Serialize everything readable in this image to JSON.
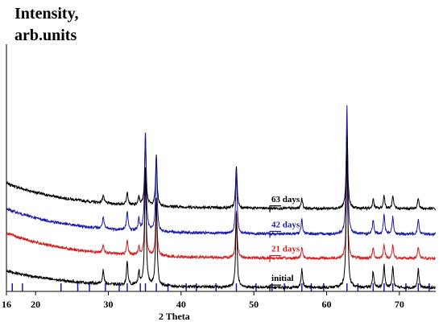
{
  "chart_data": {
    "type": "line",
    "ylabel_line1": "Intensity,",
    "ylabel_line2": "arb.units",
    "xlabel": "2 Theta",
    "xlim": [
      16,
      75
    ],
    "x_ticks": [
      "16",
      "20",
      "30",
      "40",
      "50",
      "60",
      "70"
    ],
    "ylim": [
      0,
      100
    ],
    "series": [
      {
        "name": "63 days",
        "color": "#000000",
        "base": 34,
        "tail": 10.5,
        "scale": 0.55
      },
      {
        "name": "42 days",
        "color": "#1a1aa8",
        "base": 23.5,
        "tail": 10.5,
        "scale": 0.8
      },
      {
        "name": "21 days",
        "color": "#d02020",
        "base": 13.5,
        "tail": 10.5,
        "scale": 0.6
      },
      {
        "name": "initial",
        "color": "#000000",
        "base": 1.5,
        "tail": 7,
        "scale": 0.95
      }
    ],
    "peaks": [
      {
        "x": 29.3,
        "h": 6
      },
      {
        "x": 32.6,
        "h": 10
      },
      {
        "x": 34.2,
        "h": 6
      },
      {
        "x": 35.1,
        "h": 52
      },
      {
        "x": 36.6,
        "h": 38
      },
      {
        "x": 47.6,
        "h": 32
      },
      {
        "x": 56.6,
        "h": 8
      },
      {
        "x": 62.8,
        "h": 66
      },
      {
        "x": 66.4,
        "h": 7
      },
      {
        "x": 67.9,
        "h": 10
      },
      {
        "x": 69.1,
        "h": 9
      },
      {
        "x": 72.6,
        "h": 8
      }
    ],
    "reference_lines": {
      "color": "#1a1aa8",
      "positions": [
        16.8,
        18.2,
        23.5,
        25.8,
        27.4,
        29.6,
        31.5,
        32.6,
        34.4,
        35.1,
        36.6,
        38.2,
        40.7,
        42.1,
        44.8,
        47.6,
        50.3,
        52.5,
        54.2,
        56.6,
        57.9,
        59.6,
        62.8,
        64.3,
        66.4,
        67.9,
        69.1,
        70.9,
        72.6,
        74.1
      ]
    },
    "bracket_labels": [
      "63 days",
      "42 days",
      "21 days",
      "initial"
    ]
  }
}
